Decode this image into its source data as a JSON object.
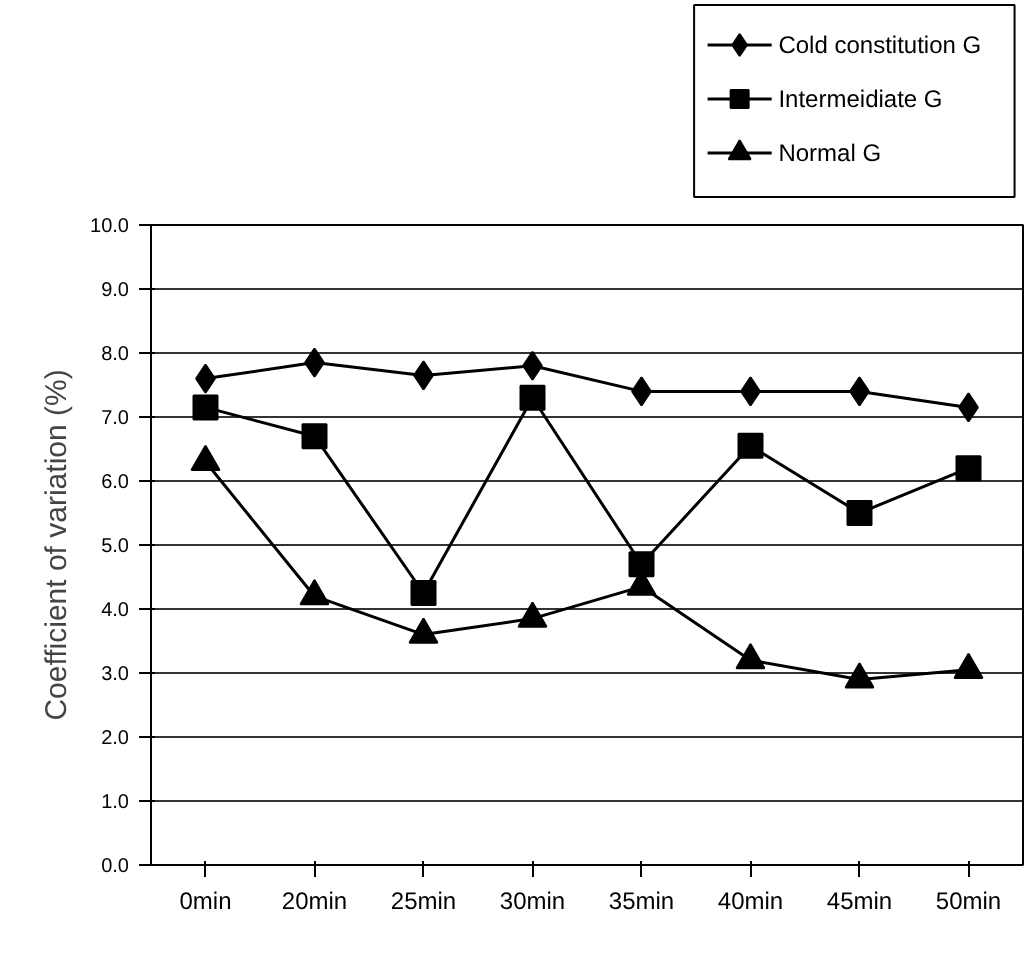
{
  "chart_data": {
    "type": "line",
    "ylabel": "Coefficient of variation (%)",
    "categories": [
      "0min",
      "20min",
      "25min",
      "30min",
      "35min",
      "40min",
      "45min",
      "50min"
    ],
    "series": [
      {
        "name": "Cold constitution G",
        "color": "#000000",
        "marker": "diamond",
        "values": [
          7.6,
          7.85,
          7.65,
          7.8,
          7.4,
          7.4,
          7.4,
          7.15
        ]
      },
      {
        "name": "Intermeidiate G",
        "color": "#000000",
        "marker": "square",
        "values": [
          7.15,
          6.7,
          4.25,
          7.3,
          4.7,
          6.55,
          5.5,
          6.2
        ]
      },
      {
        "name": "Normal G",
        "color": "#000000",
        "marker": "triangle",
        "values": [
          6.3,
          4.2,
          3.6,
          3.85,
          4.35,
          3.2,
          2.9,
          3.05
        ]
      }
    ],
    "ylim": [
      0,
      10
    ],
    "yticks": [
      {
        "value": 0,
        "label": "0.0"
      },
      {
        "value": 1,
        "label": "1.0"
      },
      {
        "value": 2,
        "label": "2.0"
      },
      {
        "value": 3,
        "label": "3.0"
      },
      {
        "value": 4,
        "label": "4.0"
      },
      {
        "value": 5,
        "label": "5.0"
      },
      {
        "value": 6,
        "label": "6.0"
      },
      {
        "value": 7,
        "label": "7.0"
      },
      {
        "value": 8,
        "label": "8.0"
      },
      {
        "value": 9,
        "label": "9.0"
      },
      {
        "value": 10,
        "label": "10.0"
      }
    ],
    "grid": "y",
    "legend": "top right",
    "line_style": "solid"
  }
}
